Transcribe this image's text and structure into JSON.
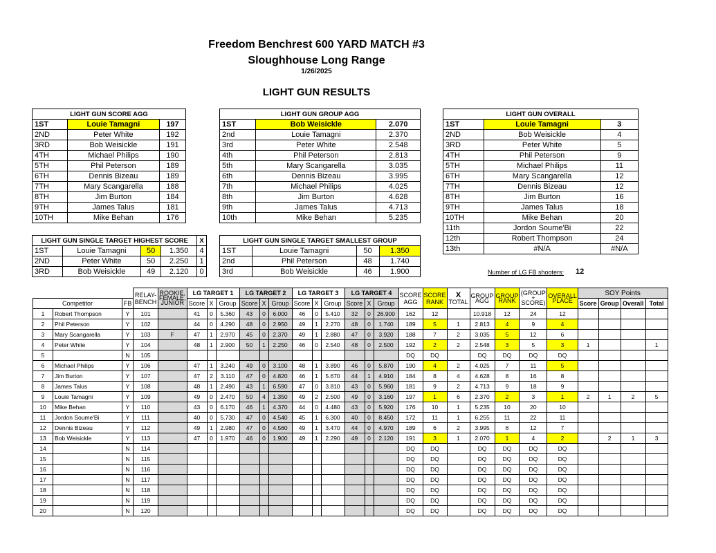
{
  "header": {
    "title": "Freedom Benchrest 600 YARD MATCH #3",
    "venue": "Sloughhouse Long Range",
    "date": "1/26/2025",
    "section": "LIGHT GUN RESULTS"
  },
  "score_agg": {
    "title": "LIGHT GUN SCORE AGG",
    "rows": [
      {
        "place": "1ST",
        "name": "Louie Tamagni",
        "value": "197"
      },
      {
        "place": "2ND",
        "name": "Peter White",
        "value": "192"
      },
      {
        "place": "3RD",
        "name": "Bob Weisickle",
        "value": "191"
      },
      {
        "place": "4TH",
        "name": "Michael Philips",
        "value": "190"
      },
      {
        "place": "5TH",
        "name": "Phil Peterson",
        "value": "189"
      },
      {
        "place": "6TH",
        "name": "Dennis Bizeau",
        "value": "189"
      },
      {
        "place": "7TH",
        "name": "Mary Scangarella",
        "value": "188"
      },
      {
        "place": "8TH",
        "name": "Jim Burton",
        "value": "184"
      },
      {
        "place": "9TH",
        "name": "James Talus",
        "value": "181"
      },
      {
        "place": "10TH",
        "name": "Mike Behan",
        "value": "176"
      }
    ]
  },
  "group_agg": {
    "title": "LIGHT GUN GROUP AGG",
    "rows": [
      {
        "place": "1ST",
        "name": "Bob Weisickle",
        "value": "2.070"
      },
      {
        "place": "2nd",
        "name": "Louie Tamagni",
        "value": "2.370"
      },
      {
        "place": "3rd",
        "name": "Peter White",
        "value": "2.548"
      },
      {
        "place": "4th",
        "name": "Phil Peterson",
        "value": "2.813"
      },
      {
        "place": "5th",
        "name": "Mary Scangarella",
        "value": "3.035"
      },
      {
        "place": "6th",
        "name": "Dennis Bizeau",
        "value": "3.995"
      },
      {
        "place": "7th",
        "name": "Michael Philips",
        "value": "4.025"
      },
      {
        "place": "8th",
        "name": "Jim Burton",
        "value": "4.628"
      },
      {
        "place": "9th",
        "name": "James Talus",
        "value": "4.713"
      },
      {
        "place": "10th",
        "name": "Mike Behan",
        "value": "5.235"
      }
    ]
  },
  "overall": {
    "title": "LIGHT GUN OVERALL",
    "rows": [
      {
        "place": "1ST",
        "name": "Louie Tamagni",
        "value": "3"
      },
      {
        "place": "2ND",
        "name": "Bob Weisickle",
        "value": "4"
      },
      {
        "place": "3RD",
        "name": "Peter White",
        "value": "5"
      },
      {
        "place": "4TH",
        "name": "Phil Peterson",
        "value": "9"
      },
      {
        "place": "5TH",
        "name": "Michael Philips",
        "value": "11"
      },
      {
        "place": "6TH",
        "name": "Mary Scangarella",
        "value": "12"
      },
      {
        "place": "7TH",
        "name": "Dennis Bizeau",
        "value": "12"
      },
      {
        "place": "8TH",
        "name": "Jim Burton",
        "value": "16"
      },
      {
        "place": "9TH",
        "name": "James Talus",
        "value": "18"
      },
      {
        "place": "10TH",
        "name": "Mike Behan",
        "value": "20"
      },
      {
        "place": "11th",
        "name": "Jordon Soume'Bi",
        "value": "22"
      },
      {
        "place": "12th",
        "name": "Robert Thompson",
        "value": "24"
      },
      {
        "place": "13th",
        "name": "#N/A",
        "value": "#N/A"
      }
    ]
  },
  "highest_score": {
    "title": "LIGHT GUN SINGLE TARGET HIGHEST SCORE",
    "x_label": "X",
    "rows": [
      {
        "place": "1ST",
        "name": "Louie Tamagni",
        "score": "50",
        "group": "1.350",
        "x": "4"
      },
      {
        "place": "2ND",
        "name": "Peter White",
        "score": "50",
        "group": "2.250",
        "x": "1"
      },
      {
        "place": "3RD",
        "name": "Bob Weisickle",
        "score": "49",
        "group": "2.120",
        "x": "0"
      }
    ]
  },
  "smallest_group": {
    "title": "LIGHT GUN SINGLE TARGET SMALLEST GROUP",
    "rows": [
      {
        "place": "1ST",
        "name": "Louie Tamagni",
        "score": "50",
        "group": "1.350"
      },
      {
        "place": "2nd",
        "name": "Phil Peterson",
        "score": "48",
        "group": "1.740"
      },
      {
        "place": "3rd",
        "name": "Bob Weisickle",
        "score": "46",
        "group": "1.900"
      }
    ]
  },
  "fb_count": {
    "label": "Number of LG FB shooters:",
    "value": "12"
  },
  "main": {
    "h": {
      "relay": "RELAY-BENCH",
      "rookie": "ROOKIE, FEMALE, JUNIOR",
      "t1": "LG TARGET 1",
      "t2": "LG TARGET 2",
      "t3": "LG TARGET 3",
      "t4": "LG TARGET 4",
      "score_agg": "SCORE AGG",
      "score_rank": "SCORE RANK",
      "x_total_x": "X",
      "x_total": "TOTAL",
      "group_agg": "GROUP AGG",
      "group_rank": "GROUP RANK",
      "group_score": "(GROUP + SCORE)",
      "overall_place": "OVERALL PLACE",
      "soy": "SOY Points",
      "competitor": "Competitor",
      "fb": "FB",
      "score": "Score",
      "x": "X",
      "group": "Group",
      "soy_score": "Score",
      "soy_group": "Group",
      "soy_overall": "Overall",
      "soy_total": "Total"
    },
    "rows": [
      {
        "no": "1",
        "name": "Robert Thompson",
        "fb": "Y",
        "bench": "101",
        "r": "",
        "s1": "41",
        "x1": "0",
        "g1": "5.360",
        "s2": "43",
        "x2": "0",
        "g2": "6.000",
        "s3": "46",
        "x3": "0",
        "g3": "5.410",
        "s4": "32",
        "x4": "0",
        "g4": "26.900",
        "sagg": "162",
        "srank": "12",
        "xt": "",
        "gagg": "10.918",
        "grank": "12",
        "gs": "24",
        "op": "12",
        "ps": "",
        "pg": "",
        "po": "",
        "pt": ""
      },
      {
        "no": "2",
        "name": "Phil Peterson",
        "fb": "Y",
        "bench": "102",
        "r": "",
        "s1": "44",
        "x1": "0",
        "g1": "4.290",
        "s2": "48",
        "x2": "0",
        "g2": "2.950",
        "s3": "49",
        "x3": "1",
        "g3": "2.270",
        "s4": "48",
        "x4": "0",
        "g4": "1.740",
        "sagg": "189",
        "srank": "5",
        "xt": "1",
        "gagg": "2.813",
        "grank": "4",
        "gs": "9",
        "op": "4",
        "ps": "",
        "pg": "",
        "po": "",
        "pt": ""
      },
      {
        "no": "3",
        "name": "Mary Scangarella",
        "fb": "Y",
        "bench": "103",
        "r": "F",
        "s1": "47",
        "x1": "1",
        "g1": "2.970",
        "s2": "45",
        "x2": "0",
        "g2": "2.370",
        "s3": "49",
        "x3": "1",
        "g3": "2.880",
        "s4": "47",
        "x4": "0",
        "g4": "3.920",
        "sagg": "188",
        "srank": "7",
        "xt": "2",
        "gagg": "3.035",
        "grank": "5",
        "gs": "12",
        "op": "6",
        "ps": "",
        "pg": "",
        "po": "",
        "pt": ""
      },
      {
        "no": "4",
        "name": "Peter White",
        "fb": "Y",
        "bench": "104",
        "r": "",
        "s1": "48",
        "x1": "1",
        "g1": "2.900",
        "s2": "50",
        "x2": "1",
        "g2": "2.250",
        "s3": "46",
        "x3": "0",
        "g3": "2.540",
        "s4": "48",
        "x4": "0",
        "g4": "2.500",
        "sagg": "192",
        "srank": "2",
        "xt": "2",
        "gagg": "2.548",
        "grank": "3",
        "gs": "5",
        "op": "3",
        "ps": "1",
        "pg": "",
        "po": "",
        "pt": "1"
      },
      {
        "no": "5",
        "name": "",
        "fb": "N",
        "bench": "105",
        "r": "",
        "s1": "",
        "x1": "",
        "g1": "",
        "s2": "",
        "x2": "",
        "g2": "",
        "s3": "",
        "x3": "",
        "g3": "",
        "s4": "",
        "x4": "",
        "g4": "",
        "sagg": "DQ",
        "srank": "DQ",
        "xt": "",
        "gagg": "DQ",
        "grank": "DQ",
        "gs": "DQ",
        "op": "DQ",
        "ps": "",
        "pg": "",
        "po": "",
        "pt": ""
      },
      {
        "no": "6",
        "name": "Michael Philips",
        "fb": "Y",
        "bench": "106",
        "r": "",
        "s1": "47",
        "x1": "1",
        "g1": "3.240",
        "s2": "49",
        "x2": "0",
        "g2": "3.100",
        "s3": "48",
        "x3": "1",
        "g3": "3.890",
        "s4": "46",
        "x4": "0",
        "g4": "5.870",
        "sagg": "190",
        "srank": "4",
        "xt": "2",
        "gagg": "4.025",
        "grank": "7",
        "gs": "11",
        "op": "5",
        "ps": "",
        "pg": "",
        "po": "",
        "pt": ""
      },
      {
        "no": "7",
        "name": "Jim Burton",
        "fb": "Y",
        "bench": "107",
        "r": "",
        "s1": "47",
        "x1": "2",
        "g1": "3.110",
        "s2": "47",
        "x2": "0",
        "g2": "4.820",
        "s3": "46",
        "x3": "1",
        "g3": "5.670",
        "s4": "44",
        "x4": "1",
        "g4": "4.910",
        "sagg": "184",
        "srank": "8",
        "xt": "4",
        "gagg": "4.628",
        "grank": "8",
        "gs": "16",
        "op": "8",
        "ps": "",
        "pg": "",
        "po": "",
        "pt": ""
      },
      {
        "no": "8",
        "name": "James Talus",
        "fb": "Y",
        "bench": "108",
        "r": "",
        "s1": "48",
        "x1": "1",
        "g1": "2.490",
        "s2": "43",
        "x2": "1",
        "g2": "6.590",
        "s3": "47",
        "x3": "0",
        "g3": "3.810",
        "s4": "43",
        "x4": "0",
        "g4": "5.960",
        "sagg": "181",
        "srank": "9",
        "xt": "2",
        "gagg": "4.713",
        "grank": "9",
        "gs": "18",
        "op": "9",
        "ps": "",
        "pg": "",
        "po": "",
        "pt": ""
      },
      {
        "no": "9",
        "name": "Louie Tamagni",
        "fb": "Y",
        "bench": "109",
        "r": "",
        "s1": "49",
        "x1": "0",
        "g1": "2.470",
        "s2": "50",
        "x2": "4",
        "g2": "1.350",
        "s3": "49",
        "x3": "2",
        "g3": "2.500",
        "s4": "49",
        "x4": "0",
        "g4": "3.160",
        "sagg": "197",
        "srank": "1",
        "xt": "6",
        "gagg": "2.370",
        "grank": "2",
        "gs": "3",
        "op": "1",
        "ps": "2",
        "pg": "1",
        "po": "2",
        "pt": "5"
      },
      {
        "no": "10",
        "name": "Mike Behan",
        "fb": "Y",
        "bench": "110",
        "r": "",
        "s1": "43",
        "x1": "0",
        "g1": "6.170",
        "s2": "46",
        "x2": "1",
        "g2": "4.370",
        "s3": "44",
        "x3": "0",
        "g3": "4.480",
        "s4": "43",
        "x4": "0",
        "g4": "5.920",
        "sagg": "176",
        "srank": "10",
        "xt": "1",
        "gagg": "5.235",
        "grank": "10",
        "gs": "20",
        "op": "10",
        "ps": "",
        "pg": "",
        "po": "",
        "pt": ""
      },
      {
        "no": "11",
        "name": "Jordon Soume'Bi",
        "fb": "Y",
        "bench": "111",
        "r": "",
        "s1": "40",
        "x1": "0",
        "g1": "5.730",
        "s2": "47",
        "x2": "0",
        "g2": "4.540",
        "s3": "45",
        "x3": "1",
        "g3": "6.300",
        "s4": "40",
        "x4": "0",
        "g4": "8.450",
        "sagg": "172",
        "srank": "11",
        "xt": "1",
        "gagg": "6.255",
        "grank": "11",
        "gs": "22",
        "op": "11",
        "ps": "",
        "pg": "",
        "po": "",
        "pt": ""
      },
      {
        "no": "12",
        "name": "Dennis Bizeau",
        "fb": "Y",
        "bench": "112",
        "r": "",
        "s1": "49",
        "x1": "1",
        "g1": "2.980",
        "s2": "47",
        "x2": "0",
        "g2": "4.560",
        "s3": "49",
        "x3": "1",
        "g3": "3.470",
        "s4": "44",
        "x4": "0",
        "g4": "4.970",
        "sagg": "189",
        "srank": "6",
        "xt": "2",
        "gagg": "3.995",
        "grank": "6",
        "gs": "12",
        "op": "7",
        "ps": "",
        "pg": "",
        "po": "",
        "pt": ""
      },
      {
        "no": "13",
        "name": "Bob Weisickle",
        "fb": "Y",
        "bench": "113",
        "r": "",
        "s1": "47",
        "x1": "0",
        "g1": "1.970",
        "s2": "46",
        "x2": "0",
        "g2": "1.900",
        "s3": "49",
        "x3": "1",
        "g3": "2.290",
        "s4": "49",
        "x4": "0",
        "g4": "2.120",
        "sagg": "191",
        "srank": "3",
        "xt": "1",
        "gagg": "2.070",
        "grank": "1",
        "gs": "4",
        "op": "2",
        "ps": "",
        "pg": "2",
        "po": "1",
        "pt": "3"
      },
      {
        "no": "14",
        "name": "",
        "fb": "N",
        "bench": "114",
        "r": "",
        "s1": "",
        "x1": "",
        "g1": "",
        "s2": "",
        "x2": "",
        "g2": "",
        "s3": "",
        "x3": "",
        "g3": "",
        "s4": "",
        "x4": "",
        "g4": "",
        "sagg": "DQ",
        "srank": "DQ",
        "xt": "",
        "gagg": "DQ",
        "grank": "DQ",
        "gs": "DQ",
        "op": "DQ",
        "ps": "",
        "pg": "",
        "po": "",
        "pt": ""
      },
      {
        "no": "15",
        "name": "",
        "fb": "N",
        "bench": "115",
        "r": "",
        "s1": "",
        "x1": "",
        "g1": "",
        "s2": "",
        "x2": "",
        "g2": "",
        "s3": "",
        "x3": "",
        "g3": "",
        "s4": "",
        "x4": "",
        "g4": "",
        "sagg": "DQ",
        "srank": "DQ",
        "xt": "",
        "gagg": "DQ",
        "grank": "DQ",
        "gs": "DQ",
        "op": "DQ",
        "ps": "",
        "pg": "",
        "po": "",
        "pt": ""
      },
      {
        "no": "16",
        "name": "",
        "fb": "N",
        "bench": "116",
        "r": "",
        "s1": "",
        "x1": "",
        "g1": "",
        "s2": "",
        "x2": "",
        "g2": "",
        "s3": "",
        "x3": "",
        "g3": "",
        "s4": "",
        "x4": "",
        "g4": "",
        "sagg": "DQ",
        "srank": "DQ",
        "xt": "",
        "gagg": "DQ",
        "grank": "DQ",
        "gs": "DQ",
        "op": "DQ",
        "ps": "",
        "pg": "",
        "po": "",
        "pt": ""
      },
      {
        "no": "17",
        "name": "",
        "fb": "N",
        "bench": "117",
        "r": "",
        "s1": "",
        "x1": "",
        "g1": "",
        "s2": "",
        "x2": "",
        "g2": "",
        "s3": "",
        "x3": "",
        "g3": "",
        "s4": "",
        "x4": "",
        "g4": "",
        "sagg": "DQ",
        "srank": "DQ",
        "xt": "",
        "gagg": "DQ",
        "grank": "DQ",
        "gs": "DQ",
        "op": "DQ",
        "ps": "",
        "pg": "",
        "po": "",
        "pt": ""
      },
      {
        "no": "18",
        "name": "",
        "fb": "N",
        "bench": "118",
        "r": "",
        "s1": "",
        "x1": "",
        "g1": "",
        "s2": "",
        "x2": "",
        "g2": "",
        "s3": "",
        "x3": "",
        "g3": "",
        "s4": "",
        "x4": "",
        "g4": "",
        "sagg": "DQ",
        "srank": "DQ",
        "xt": "",
        "gagg": "DQ",
        "grank": "DQ",
        "gs": "DQ",
        "op": "DQ",
        "ps": "",
        "pg": "",
        "po": "",
        "pt": ""
      },
      {
        "no": "19",
        "name": "",
        "fb": "N",
        "bench": "119",
        "r": "",
        "s1": "",
        "x1": "",
        "g1": "",
        "s2": "",
        "x2": "",
        "g2": "",
        "s3": "",
        "x3": "",
        "g3": "",
        "s4": "",
        "x4": "",
        "g4": "",
        "sagg": "DQ",
        "srank": "DQ",
        "xt": "",
        "gagg": "DQ",
        "grank": "DQ",
        "gs": "DQ",
        "op": "DQ",
        "ps": "",
        "pg": "",
        "po": "",
        "pt": ""
      },
      {
        "no": "20",
        "name": "",
        "fb": "N",
        "bench": "120",
        "r": "",
        "s1": "",
        "x1": "",
        "g1": "",
        "s2": "",
        "x2": "",
        "g2": "",
        "s3": "",
        "x3": "",
        "g3": "",
        "s4": "",
        "x4": "",
        "g4": "",
        "sagg": "DQ",
        "srank": "DQ",
        "xt": "",
        "gagg": "DQ",
        "grank": "DQ",
        "gs": "DQ",
        "op": "DQ",
        "ps": "",
        "pg": "",
        "po": "",
        "pt": ""
      }
    ]
  }
}
